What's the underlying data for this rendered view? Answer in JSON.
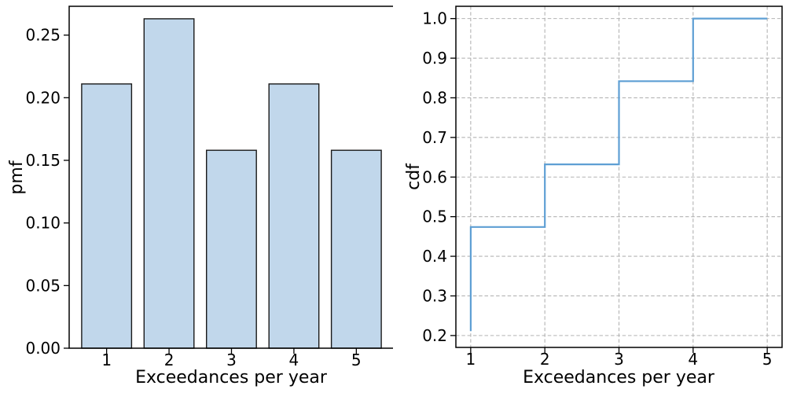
{
  "figure": {
    "background": "#ffffff",
    "text_color": "#000000",
    "spine_color": "#000000"
  },
  "chart_data": [
    {
      "id": "pmf",
      "type": "bar",
      "title": "",
      "xlabel": "Exceedances per year",
      "ylabel": "pmf",
      "categories": [
        1,
        2,
        3,
        4,
        5
      ],
      "values": [
        0.211,
        0.263,
        0.158,
        0.211,
        0.158
      ],
      "xticks": [
        1,
        2,
        3,
        4,
        5
      ],
      "yticks": [
        0.0,
        0.05,
        0.1,
        0.15,
        0.2,
        0.25
      ],
      "ytick_decimals": 2,
      "xlim": [
        0.4,
        5.6
      ],
      "ylim": [
        0,
        0.273
      ],
      "bar_width": 0.8,
      "grid": false,
      "bar_fill": "#c1d7eb",
      "bar_edge": "#1a1a1a",
      "legend": null
    },
    {
      "id": "cdf",
      "type": "line",
      "step": "pre",
      "title": "",
      "xlabel": "Exceedances per year",
      "ylabel": "cdf",
      "x": [
        1,
        2,
        3,
        4,
        5
      ],
      "y": [
        0.211,
        0.474,
        0.632,
        0.842,
        1.0
      ],
      "xticks": [
        1,
        2,
        3,
        4,
        5
      ],
      "yticks": [
        0.2,
        0.3,
        0.4,
        0.5,
        0.6,
        0.7,
        0.8,
        0.9,
        1.0
      ],
      "ytick_decimals": 1,
      "xlim": [
        0.8,
        5.2
      ],
      "ylim": [
        0.17,
        1.031
      ],
      "grid": true,
      "grid_color": "#b3b3b3",
      "line_color": "#5e9fd4",
      "legend": null
    }
  ]
}
